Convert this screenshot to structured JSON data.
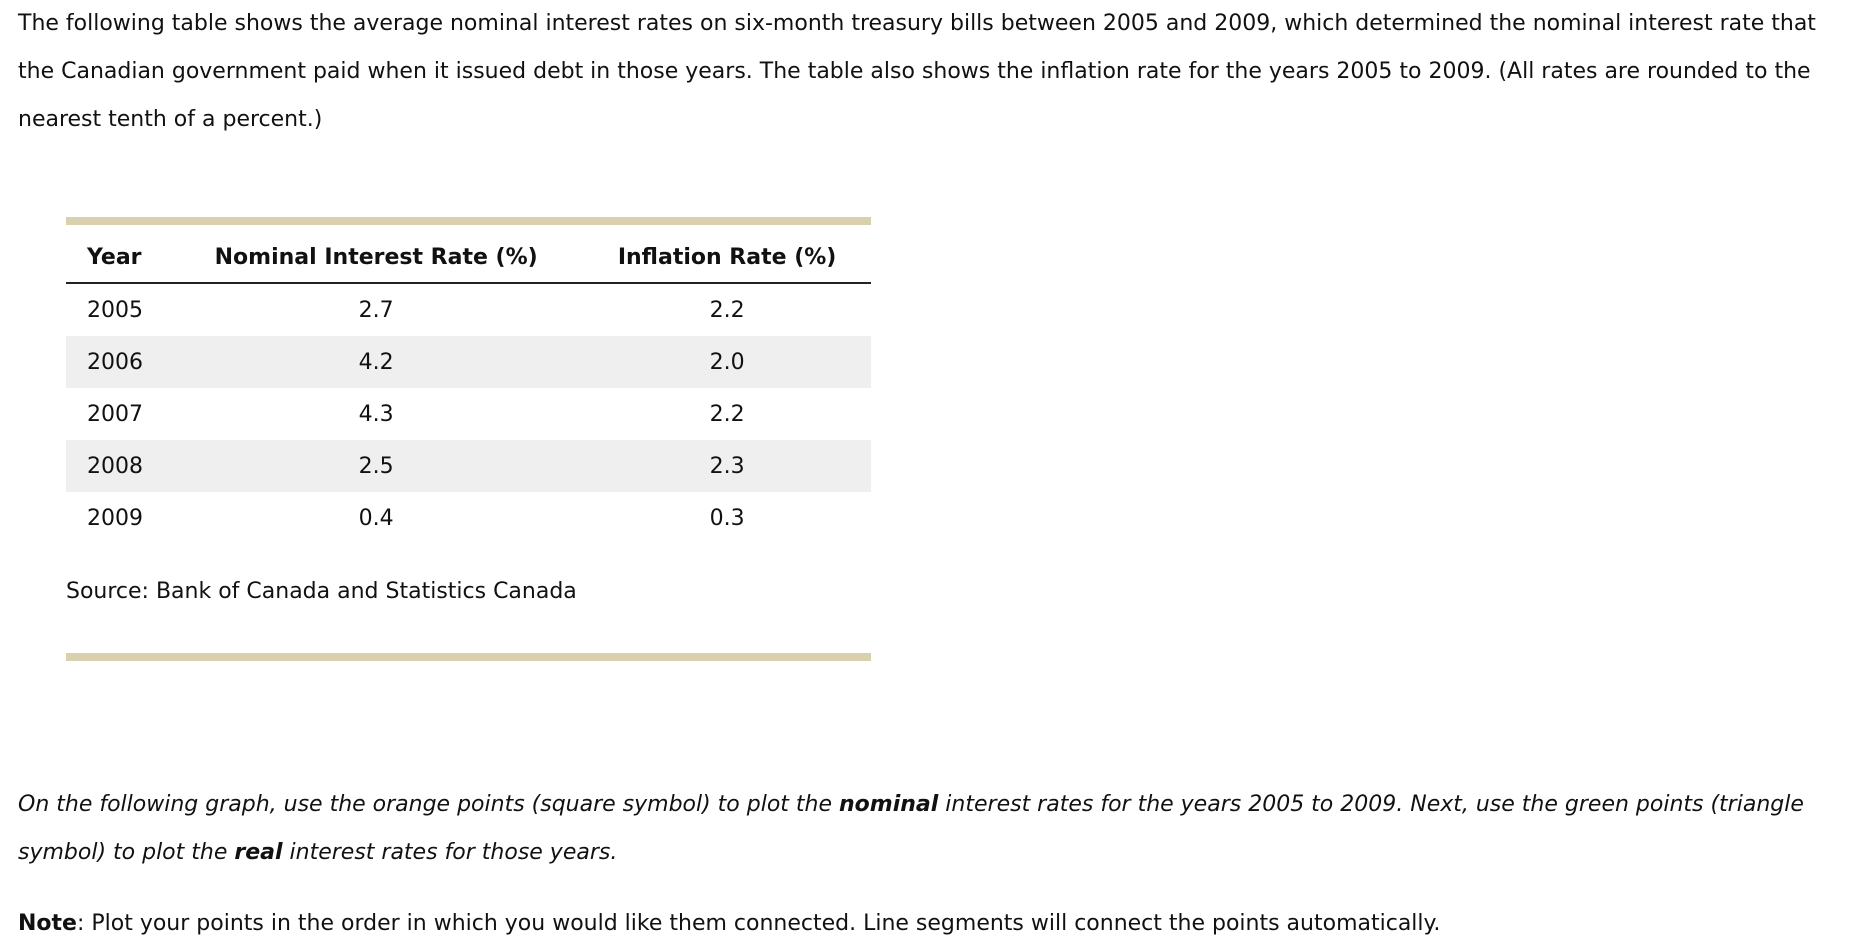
{
  "intro": "The following table shows the average nominal interest rates on six-month treasury bills between 2005 and 2009, which determined the nominal interest rate that the Canadian government paid when it issued debt in those years. The table also shows the inflation rate for the years 2005 to 2009. (All rates are rounded to the nearest tenth of a percent.)",
  "table": {
    "headers": [
      "Year",
      "Nominal Interest Rate (%)",
      "Inflation Rate (%)"
    ],
    "rows": [
      [
        "2005",
        "2.7",
        "2.2"
      ],
      [
        "2006",
        "4.2",
        "2.0"
      ],
      [
        "2007",
        "4.3",
        "2.2"
      ],
      [
        "2008",
        "2.5",
        "2.3"
      ],
      [
        "2009",
        "0.4",
        "0.3"
      ]
    ],
    "source": "Source: Bank of Canada and Statistics Canada"
  },
  "instructions": [
    "On the following graph, use the orange points (square symbol) to plot the ",
    "nominal",
    " interest rates for the years 2005 to 2009. Next, use the green points (triangle symbol) to plot the ",
    "real",
    " interest rates for those years."
  ],
  "note": [
    "Note",
    ": Plot your points in the order in which you would like them connected. Line segments will connect the points automatically."
  ]
}
